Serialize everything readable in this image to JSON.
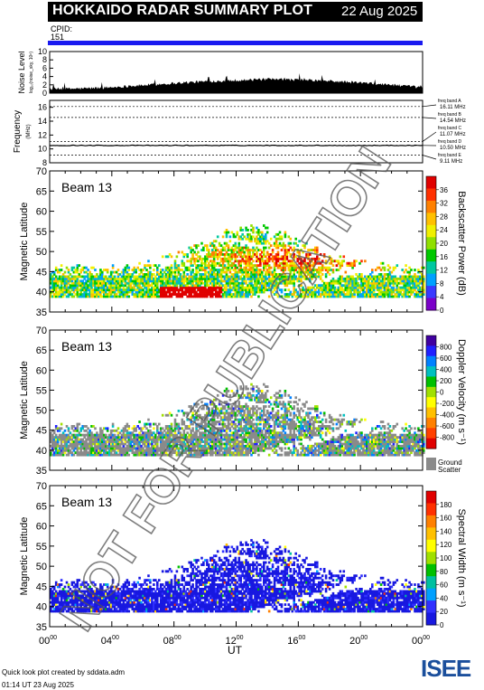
{
  "header": {
    "title": "HOKKAIDO RADAR SUMMARY PLOT",
    "date": "22 Aug 2025",
    "cpid_label": "CPID:",
    "cpid_value": "151"
  },
  "footer": {
    "line1": "Quick look plot created by sddata.adm",
    "line2": "01:14 UT 23 Aug 2025",
    "logo": "ISEE"
  },
  "watermark": "NOT FOR PUBLICATION",
  "colors": {
    "cpid_bar": "#1a1af0",
    "ground_scatter": "#8a8a8a",
    "power_scale": [
      "#7a00c8",
      "#3a3aff",
      "#00a0ff",
      "#00c8a0",
      "#00c800",
      "#90e000",
      "#f0f000",
      "#ffc000",
      "#ff8000",
      "#ff3000",
      "#e00000"
    ],
    "velocity_scale": [
      "#4000a0",
      "#2020ff",
      "#0080ff",
      "#00c0c0",
      "#00c000",
      "#a0e000",
      "#ffff00",
      "#ffc000",
      "#ff8000",
      "#ff4000",
      "#e00000"
    ],
    "width_scale": [
      "#1818e0",
      "#3030ff",
      "#00a0ff",
      "#00c0a0",
      "#00c000",
      "#a0e000",
      "#ffff00",
      "#ffc000",
      "#ff8000",
      "#ff3000",
      "#e00000"
    ]
  },
  "chart_data": [
    {
      "type": "area",
      "panel": "noise",
      "ylabel": "Noise Level",
      "ylabel_units": "log₁₀(noise_sky, 10⁶)",
      "ylim": [
        0,
        10
      ],
      "yticks": [
        "0",
        "2",
        "4",
        "6",
        "8",
        "10"
      ],
      "x": [
        0,
        2,
        4,
        6,
        8,
        10,
        12,
        14,
        16,
        18,
        20,
        22,
        24
      ],
      "values": [
        1.0,
        1.1,
        1.4,
        1.9,
        2.4,
        2.8,
        3.1,
        3.3,
        3.2,
        2.9,
        2.5,
        2.0,
        1.3
      ]
    },
    {
      "type": "line",
      "panel": "frequency",
      "ylabel": "Frequency",
      "ylabel_units": "(MHz)",
      "ylim": [
        8,
        17
      ],
      "yticks": [
        "8",
        "10",
        "12",
        "14",
        "16"
      ],
      "bands": [
        {
          "label": "freq band A",
          "freq": "16.11 MHz",
          "value": 16.11
        },
        {
          "label": "freq band B",
          "freq": "14.54 MHz",
          "value": 14.54
        },
        {
          "label": "freq band C",
          "freq": "11.07 MHz",
          "value": 11.07
        },
        {
          "label": "freq band D",
          "freq": "10.50 MHz",
          "value": 10.5
        },
        {
          "label": "freq band E",
          "freq": "9.11 MHz",
          "value": 9.11
        }
      ],
      "operating_frequency": 10.5
    },
    {
      "type": "heatmap",
      "panel": "power",
      "beam": "Beam 13",
      "ylabel": "Magnetic Latitude",
      "ylim": [
        35,
        70
      ],
      "yticks": [
        "35",
        "40",
        "45",
        "50",
        "55",
        "60",
        "65",
        "70"
      ],
      "colorbar_label": "Backscatter Power (dB)",
      "colorbar_ticks": [
        "0",
        "4",
        "8",
        "12",
        "16",
        "20",
        "24",
        "28",
        "32",
        "36"
      ],
      "colorbar_range": [
        0,
        40
      ]
    },
    {
      "type": "heatmap",
      "panel": "velocity",
      "beam": "Beam 13",
      "ylabel": "Magnetic Latitude",
      "ylim": [
        35,
        70
      ],
      "yticks": [
        "35",
        "40",
        "45",
        "50",
        "55",
        "60",
        "65",
        "70"
      ],
      "colorbar_label": "Doppler Velocity (m s⁻¹)",
      "colorbar_ticks": [
        "-800",
        "-600",
        "-400",
        "-200",
        "0",
        "200",
        "400",
        "600",
        "800"
      ],
      "colorbar_range": [
        -1000,
        1000
      ],
      "gs_label_1": "Ground",
      "gs_label_2": "Scatter"
    },
    {
      "type": "heatmap",
      "panel": "width",
      "beam": "Beam 13",
      "ylabel": "Magnetic Latitude",
      "ylim": [
        35,
        70
      ],
      "yticks": [
        "35",
        "40",
        "45",
        "50",
        "55",
        "60",
        "65",
        "70"
      ],
      "colorbar_label": "Spectral Width (m s⁻¹)",
      "colorbar_ticks": [
        "0",
        "20",
        "40",
        "60",
        "80",
        "100",
        "120",
        "140",
        "160",
        "180"
      ],
      "colorbar_range": [
        0,
        200
      ]
    }
  ],
  "time_axis": {
    "xlabel": "UT",
    "xlim": [
      0,
      24
    ],
    "ticks": [
      {
        "base": "00",
        "sup": "00"
      },
      {
        "base": "04",
        "sup": "00"
      },
      {
        "base": "08",
        "sup": "00"
      },
      {
        "base": "12",
        "sup": "00"
      },
      {
        "base": "16",
        "sup": "00"
      },
      {
        "base": "20",
        "sup": "00"
      },
      {
        "base": "00",
        "sup": "00"
      }
    ]
  }
}
